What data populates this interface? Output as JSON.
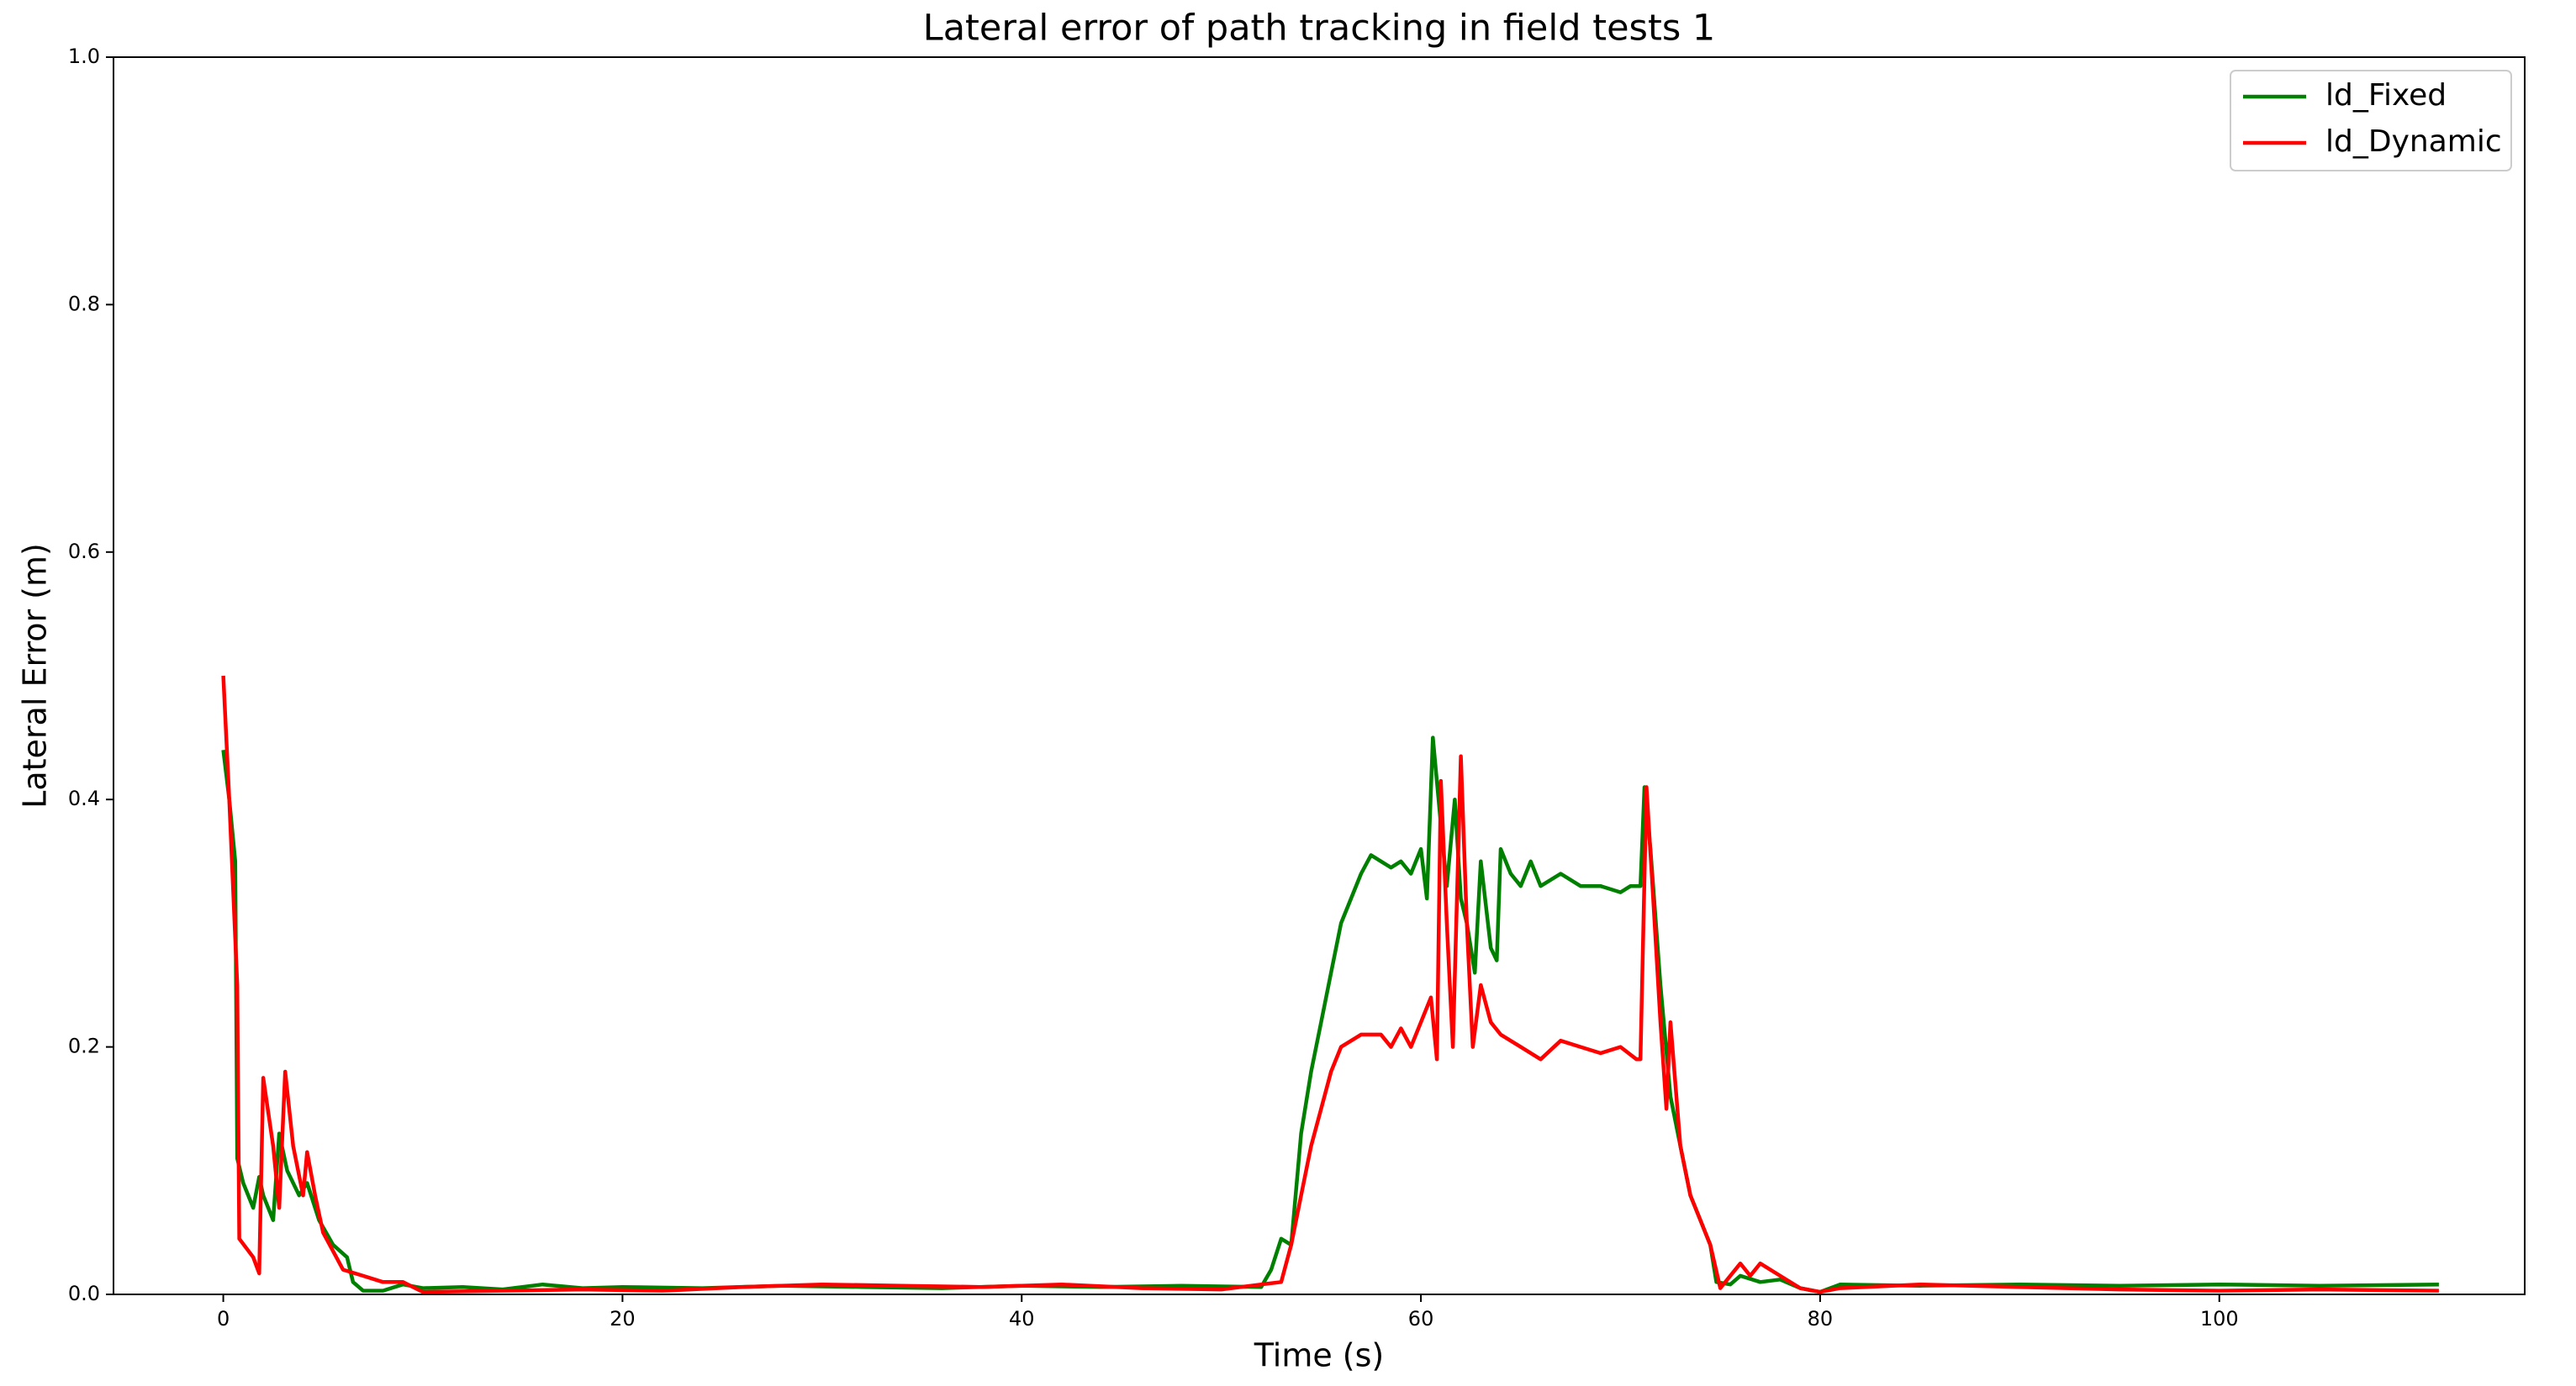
{
  "chart_data": {
    "type": "line",
    "title": "Lateral error of path tracking in field tests 1",
    "x_label": "Time (s)",
    "y_label": "Lateral Error (m)",
    "xlim": [
      -5.5,
      115.3
    ],
    "ylim": [
      0,
      1
    ],
    "xticks": [
      0,
      20,
      40,
      60,
      80,
      100
    ],
    "yticks": [
      {
        "value": 0,
        "label": "0.0"
      },
      0.2,
      0.4,
      0.6,
      0.8,
      {
        "value": 1,
        "label": "1.0"
      }
    ],
    "legend": "upper right",
    "series": [
      {
        "name": "ld_Fixed",
        "color": "#008000",
        "x": [
          0,
          0.3,
          0.6,
          0.7,
          1.0,
          1.5,
          1.8,
          2.0,
          2.5,
          2.8,
          3.2,
          3.8,
          4.2,
          4.8,
          5.5,
          6.2,
          6.5,
          7,
          8,
          9,
          10,
          12,
          14,
          16,
          18,
          20,
          24,
          28,
          32,
          36,
          40,
          44,
          48,
          52,
          52.5,
          53,
          53.5,
          54,
          54.5,
          55,
          55.5,
          56,
          56.5,
          57,
          57.5,
          58,
          58.5,
          59,
          59.5,
          60,
          60.3,
          60.6,
          61,
          61.3,
          61.7,
          62,
          62.3,
          62.7,
          63,
          63.5,
          63.8,
          64,
          64.5,
          65,
          65.5,
          66,
          67,
          68,
          69,
          70,
          70.5,
          71,
          71.2,
          71.5,
          72,
          72.5,
          73,
          73.5,
          74,
          74.5,
          74.8,
          75.5,
          76,
          77,
          78,
          79,
          80,
          81,
          85,
          90,
          95,
          100,
          105,
          111
        ],
        "values": [
          0.44,
          0.4,
          0.35,
          0.11,
          0.09,
          0.07,
          0.095,
          0.08,
          0.06,
          0.13,
          0.1,
          0.08,
          0.09,
          0.06,
          0.04,
          0.03,
          0.01,
          0.003,
          0.003,
          0.008,
          0.005,
          0.006,
          0.004,
          0.008,
          0.005,
          0.006,
          0.005,
          0.007,
          0.006,
          0.005,
          0.007,
          0.006,
          0.007,
          0.006,
          0.02,
          0.045,
          0.04,
          0.13,
          0.18,
          0.22,
          0.26,
          0.3,
          0.32,
          0.34,
          0.355,
          0.35,
          0.345,
          0.35,
          0.34,
          0.36,
          0.32,
          0.45,
          0.38,
          0.33,
          0.4,
          0.32,
          0.3,
          0.26,
          0.35,
          0.28,
          0.27,
          0.36,
          0.34,
          0.33,
          0.35,
          0.33,
          0.34,
          0.33,
          0.33,
          0.325,
          0.33,
          0.33,
          0.41,
          0.36,
          0.25,
          0.16,
          0.12,
          0.08,
          0.06,
          0.04,
          0.01,
          0.008,
          0.015,
          0.01,
          0.012,
          0.005,
          0.002,
          0.008,
          0.007,
          0.008,
          0.007,
          0.008,
          0.007,
          0.008
        ]
      },
      {
        "name": "ld_Dynamic",
        "color": "#ff0000",
        "x": [
          0,
          0.3,
          0.7,
          0.8,
          1.5,
          1.8,
          2,
          2.5,
          2.8,
          3.1,
          3.5,
          4,
          4.2,
          4.6,
          5,
          6,
          7,
          8,
          9,
          10,
          14,
          18,
          22,
          26,
          30,
          34,
          38,
          42,
          46,
          50,
          52,
          53,
          53.5,
          54,
          54.5,
          55,
          55.5,
          56,
          57,
          58,
          58.5,
          59,
          59.5,
          60,
          60.5,
          60.8,
          61,
          61.3,
          61.6,
          62,
          62.3,
          62.6,
          63,
          63.5,
          64,
          65,
          66,
          67,
          68,
          69,
          70,
          70.8,
          71,
          71.3,
          71.6,
          72,
          72.3,
          72.5,
          73,
          73.5,
          74,
          74.5,
          75,
          76,
          76.5,
          77,
          78,
          79,
          80,
          81,
          85,
          90,
          95,
          100,
          105,
          111
        ],
        "values": [
          0.5,
          0.4,
          0.25,
          0.045,
          0.03,
          0.017,
          0.175,
          0.12,
          0.07,
          0.18,
          0.12,
          0.08,
          0.115,
          0.08,
          0.05,
          0.02,
          0.015,
          0.01,
          0.01,
          0.002,
          0.003,
          0.004,
          0.003,
          0.006,
          0.008,
          0.007,
          0.006,
          0.008,
          0.005,
          0.004,
          0.008,
          0.01,
          0.04,
          0.08,
          0.12,
          0.15,
          0.18,
          0.2,
          0.21,
          0.21,
          0.2,
          0.215,
          0.2,
          0.22,
          0.24,
          0.19,
          0.415,
          0.3,
          0.2,
          0.435,
          0.3,
          0.2,
          0.25,
          0.22,
          0.21,
          0.2,
          0.19,
          0.205,
          0.2,
          0.195,
          0.2,
          0.19,
          0.19,
          0.41,
          0.33,
          0.22,
          0.15,
          0.22,
          0.12,
          0.08,
          0.06,
          0.04,
          0.005,
          0.025,
          0.015,
          0.025,
          0.015,
          0.005,
          0.002,
          0.005,
          0.008,
          0.006,
          0.004,
          0.003,
          0.004,
          0.003
        ]
      }
    ]
  }
}
